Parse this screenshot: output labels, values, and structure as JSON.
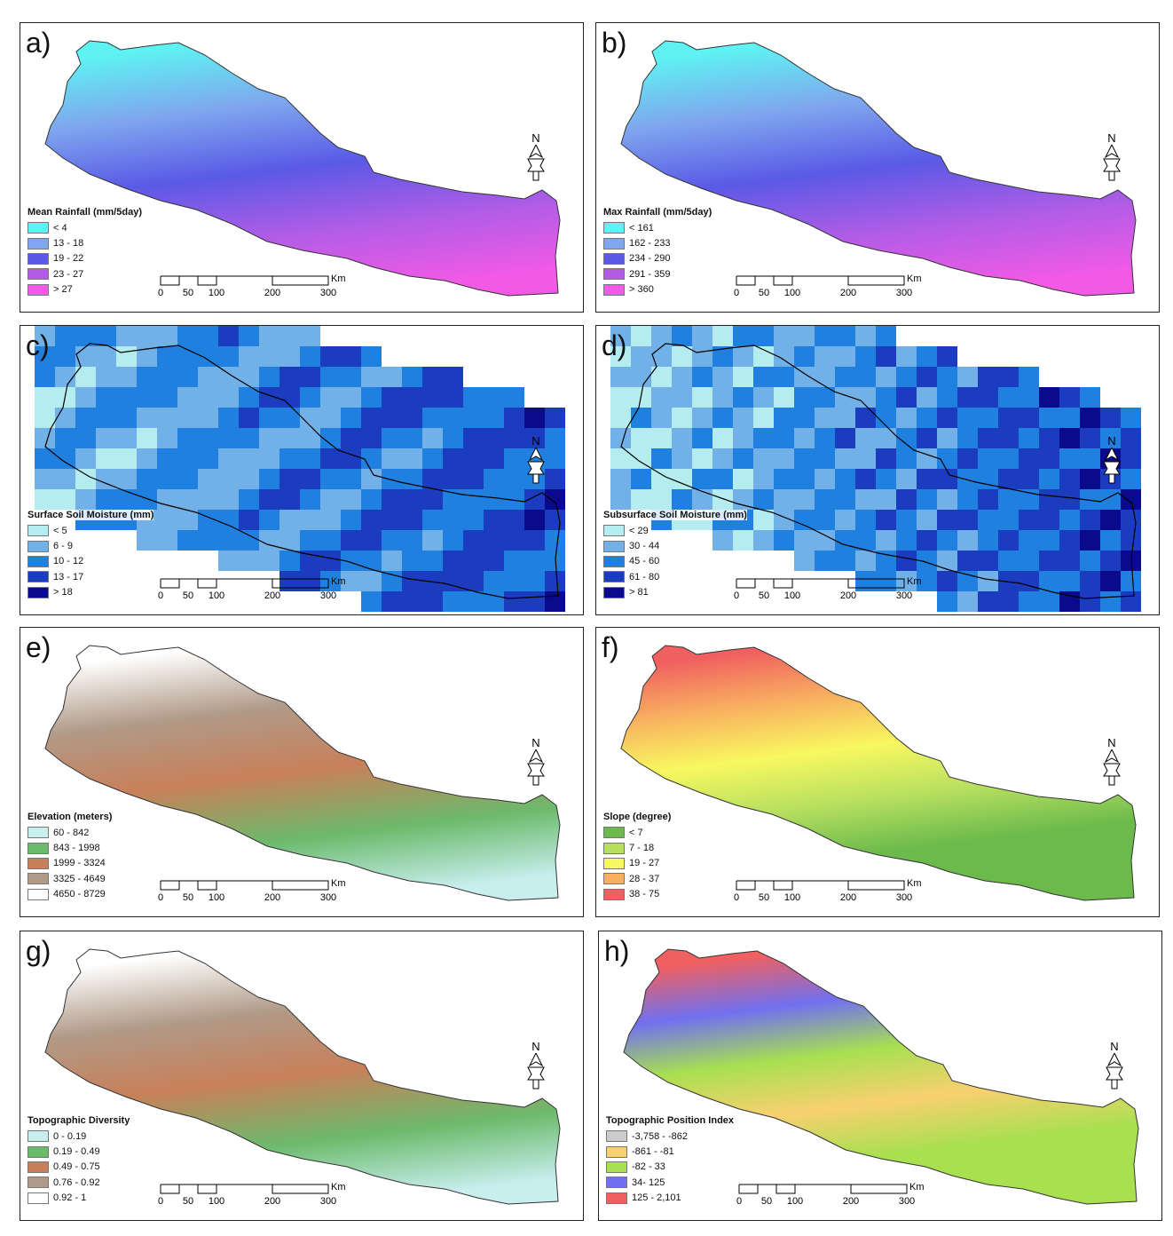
{
  "panels": [
    {
      "label": "a)",
      "title": "Mean Rainfall (mm/5day)",
      "type": "smooth",
      "items": [
        {
          "label": "< 4",
          "color": "#5ef2f2"
        },
        {
          "label": "13 - 18",
          "color": "#7fa6ee"
        },
        {
          "label": "19 - 22",
          "color": "#5a5ae6"
        },
        {
          "label": "23 - 27",
          "color": "#b25ce6"
        },
        {
          "label": "> 27",
          "color": "#f25ae6"
        }
      ]
    },
    {
      "label": "b)",
      "title": "Max Rainfall (mm/5day)",
      "type": "smooth",
      "items": [
        {
          "label": "< 161",
          "color": "#5ef2f2"
        },
        {
          "label": "162 - 233",
          "color": "#7fa6ee"
        },
        {
          "label": "234 - 290",
          "color": "#5a5ae6"
        },
        {
          "label": "291 - 359",
          "color": "#b25ce6"
        },
        {
          "label": "> 360",
          "color": "#f25ae6"
        }
      ]
    },
    {
      "label": "c)",
      "title": "Surface Soil Moisture (mm)",
      "type": "grid",
      "items": [
        {
          "label": "< 5",
          "color": "#b4ecf0"
        },
        {
          "label": "6 - 9",
          "color": "#72b0e8"
        },
        {
          "label": "10 - 12",
          "color": "#2080e0"
        },
        {
          "label": "13 - 17",
          "color": "#1c3cc0"
        },
        {
          "label": "> 18",
          "color": "#0a0a8c"
        }
      ]
    },
    {
      "label": "d)",
      "title": "Subsurface Soil Moisture (mm)",
      "type": "grid",
      "items": [
        {
          "label": "< 29",
          "color": "#b4ecf0"
        },
        {
          "label": "30 - 44",
          "color": "#72b0e8"
        },
        {
          "label": "45 - 60",
          "color": "#2080e0"
        },
        {
          "label": "61 - 80",
          "color": "#1c3cc0"
        },
        {
          "label": "> 81",
          "color": "#0a0a8c"
        }
      ]
    },
    {
      "label": "e)",
      "title": "Elevation (meters)",
      "type": "smooth",
      "items": [
        {
          "label": "60 - 842",
          "color": "#c8eeee"
        },
        {
          "label": "843 - 1998",
          "color": "#6cba6c"
        },
        {
          "label": "1999 - 3324",
          "color": "#c8805a"
        },
        {
          "label": "3325 - 4649",
          "color": "#b09a88"
        },
        {
          "label": "4650 - 8729",
          "color": "#ffffff"
        }
      ]
    },
    {
      "label": "f)",
      "title": "Slope (degree)",
      "type": "smooth",
      "items": [
        {
          "label": "< 7",
          "color": "#6cba4c"
        },
        {
          "label": "7 - 18",
          "color": "#b8e060"
        },
        {
          "label": "19 - 27",
          "color": "#f8f860"
        },
        {
          "label": "28 - 37",
          "color": "#f8b060"
        },
        {
          "label": "38 - 75",
          "color": "#f06060"
        }
      ]
    },
    {
      "label": "g)",
      "title": "Topographic Diversity",
      "type": "smooth",
      "items": [
        {
          "label": "0 - 0.19",
          "color": "#c8eeee"
        },
        {
          "label": "0.19 - 0.49",
          "color": "#6cba6c"
        },
        {
          "label": "0.49 - 0.75",
          "color": "#c8805a"
        },
        {
          "label": "0.76 - 0.92",
          "color": "#b09a88"
        },
        {
          "label": "0.92 - 1",
          "color": "#ffffff"
        }
      ]
    },
    {
      "label": "h)",
      "title": "Topographic Position Index",
      "type": "smooth",
      "items": [
        {
          "label": "-3,758 - -862",
          "color": "#cccccc"
        },
        {
          "label": "-861 - -81",
          "color": "#f8d070"
        },
        {
          "label": "-82 - 33",
          "color": "#a8e050"
        },
        {
          "label": "34- 125",
          "color": "#7070f0"
        },
        {
          "label": "125 - 2,101",
          "color": "#f06060"
        }
      ]
    }
  ],
  "scale": {
    "ticks": [
      "0",
      "50",
      "100",
      "200",
      "300"
    ],
    "unit": "Km"
  },
  "north_label": "N"
}
